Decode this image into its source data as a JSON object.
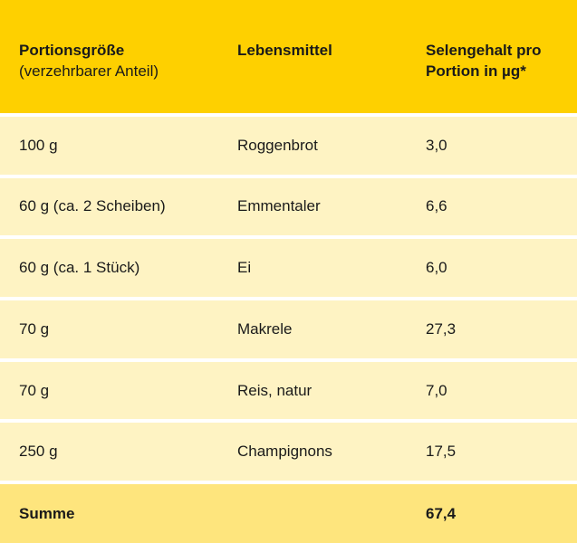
{
  "header": {
    "col1_title": "Portionsgröße",
    "col1_subtitle": "(verzehrbarer Anteil)",
    "col2_title": "Lebensmittel",
    "col3_title_line1": "Selengehalt pro",
    "col3_title_line2": "Portion in µg*"
  },
  "rows": [
    {
      "portion": "100 g",
      "food": "Roggenbrot",
      "selenium": "3,0"
    },
    {
      "portion": "60 g (ca. 2 Scheiben)",
      "food": "Emmentaler",
      "selenium": "6,6"
    },
    {
      "portion": "60 g (ca. 1 Stück)",
      "food": "Ei",
      "selenium": "6,0"
    },
    {
      "portion": "70 g",
      "food": "Makrele",
      "selenium": "27,3"
    },
    {
      "portion": "70 g",
      "food": "Reis, natur",
      "selenium": "7,0"
    },
    {
      "portion": "250 g",
      "food": "Champignons",
      "selenium": "17,5"
    }
  ],
  "total": {
    "label": "Summe",
    "value": "67,4"
  }
}
